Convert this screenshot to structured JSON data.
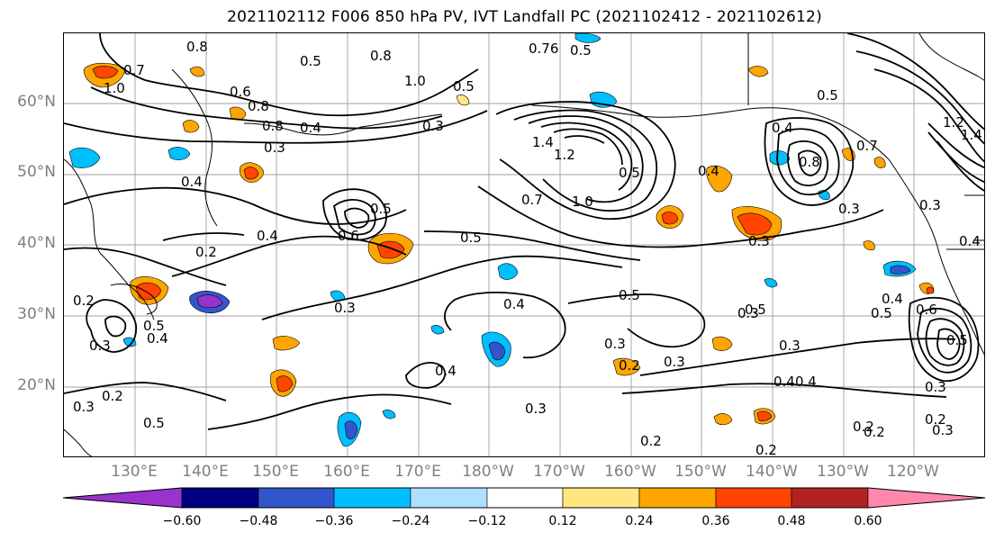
{
  "title": "2021102112 F006 850 hPa PV, IVT Landfall PC (2021102412 - 2021102612)",
  "lat_labels": [
    "60°N",
    "50°N",
    "40°N",
    "30°N",
    "20°N"
  ],
  "lon_labels": [
    "130°E",
    "140°E",
    "150°E",
    "160°E",
    "170°E",
    "180°W",
    "170°W",
    "160°W",
    "150°W",
    "140°W",
    "130°W",
    "120°W"
  ],
  "colorbar": {
    "ticks": [
      "−0.60",
      "−0.48",
      "−0.36",
      "−0.24",
      "−0.12",
      "0.12",
      "0.24",
      "0.36",
      "0.48",
      "0.60"
    ],
    "colors": [
      "#9933cc",
      "#000080",
      "#3355cc",
      "#00bfff",
      "#b0e0ff",
      "#ffffff",
      "#ffe680",
      "#ffa500",
      "#ff4500",
      "#b22222",
      "#ff88aa"
    ]
  },
  "contour_labels": [
    "0.8",
    "0.7",
    "1.0",
    "0.6",
    "0.5",
    "0.8",
    "0.76",
    "0.5",
    "0.8",
    "1.0",
    "0.5",
    "0.3",
    "0.4",
    "0.8",
    "0.3",
    "1.4",
    "1.2",
    "0.7",
    "1.0",
    "0.5",
    "0.4",
    "0.6",
    "0.5",
    "0.4",
    "0.2",
    "0.4",
    "0.5",
    "0.3",
    "0.4",
    "0.5",
    "0.3",
    "0.2",
    "0.3",
    "0.5",
    "0.4",
    "0.3",
    "0.2",
    "0.3",
    "0.2",
    "0.4",
    "0.3",
    "0.5",
    "0.4",
    "0.3",
    "0.2",
    "0.2",
    "0.3",
    "0.2",
    "0.2",
    "0.5",
    "0.4",
    "0.3",
    "0.4",
    "0.5",
    "0.3",
    "0.2",
    "0.3",
    "0.4",
    "0.5",
    "0.8",
    "0.4",
    "0.3",
    "0.6",
    "0.5",
    "1.2",
    "1.4",
    "0.7",
    "0.3"
  ]
}
